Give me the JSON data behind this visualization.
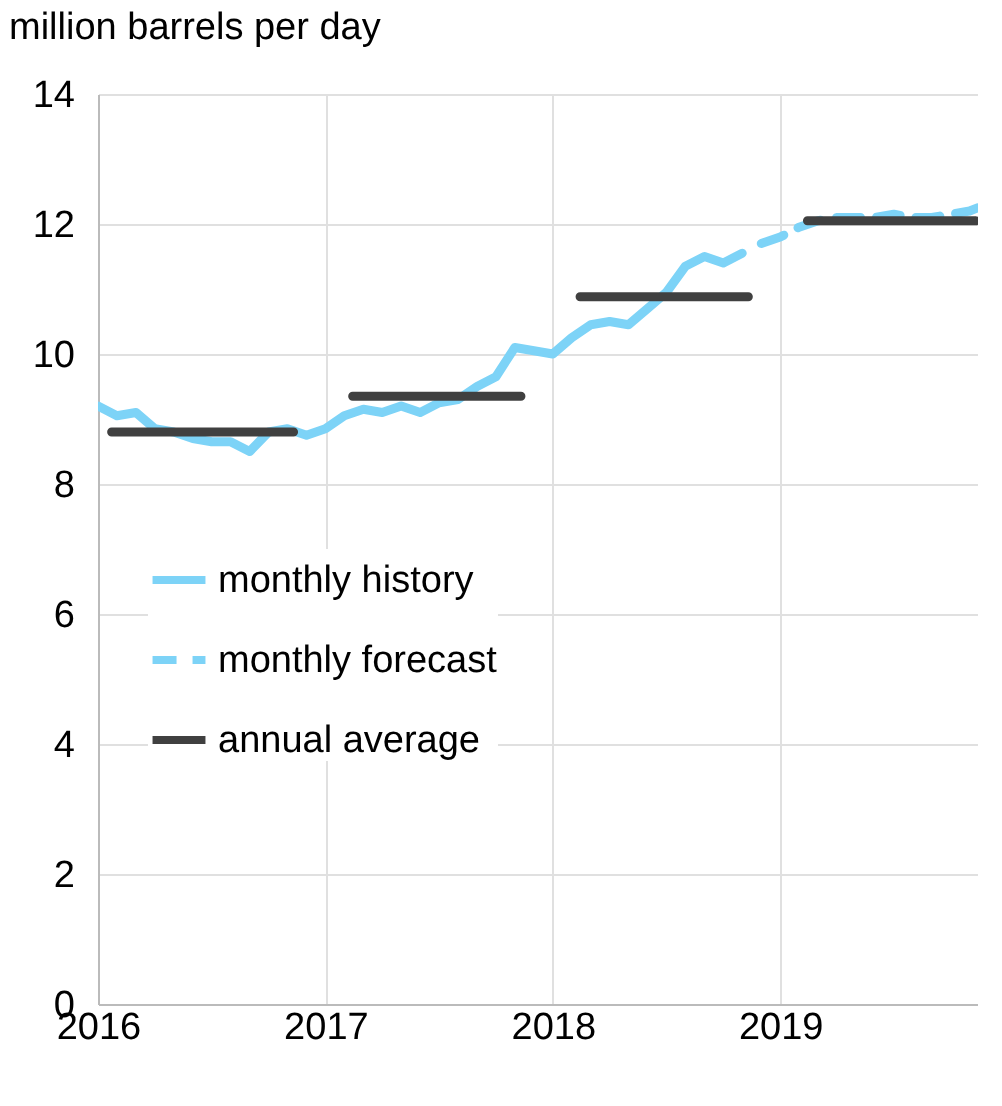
{
  "chart_data": {
    "type": "line",
    "ylabel": "million barrels per day",
    "xlim": [
      2016,
      2019.87
    ],
    "xticks": [
      2016,
      2017,
      2018,
      2019
    ],
    "ylim": [
      0,
      14
    ],
    "yticks": [
      0,
      2,
      4,
      6,
      8,
      10,
      12,
      14
    ],
    "grid": true,
    "legend": "left",
    "marker": "none",
    "series": [
      {
        "name": "monthly history",
        "color": "#7dd3f7",
        "line_style": "solid",
        "x": [
          2016,
          2016.083,
          2016.167,
          2016.25,
          2016.333,
          2016.417,
          2016.5,
          2016.583,
          2016.667,
          2016.75,
          2016.833,
          2016.917,
          2017,
          2017.083,
          2017.167,
          2017.25,
          2017.333,
          2017.417,
          2017.5,
          2017.583,
          2017.667,
          2017.75,
          2017.833,
          2017.917,
          2018,
          2018.083,
          2018.167,
          2018.25,
          2018.333,
          2018.417,
          2018.5,
          2018.583,
          2018.667,
          2018.75,
          2018.833
        ],
        "values": [
          9.2,
          9.05,
          9.1,
          8.85,
          8.8,
          8.7,
          8.65,
          8.65,
          8.5,
          8.8,
          8.85,
          8.75,
          8.85,
          9.05,
          9.15,
          9.1,
          9.2,
          9.1,
          9.25,
          9.3,
          9.5,
          9.65,
          10.1,
          10.05,
          10.0,
          10.25,
          10.45,
          10.5,
          10.45,
          10.7,
          10.95,
          11.35,
          11.5,
          11.4,
          11.55
        ]
      },
      {
        "name": "monthly forecast",
        "color": "#7dd3f7",
        "line_style": "dashed",
        "x": [
          2018.917,
          2019,
          2019.083,
          2019.167,
          2019.25,
          2019.333,
          2019.417,
          2019.5,
          2019.583,
          2019.667,
          2019.75,
          2019.833,
          2019.87
        ],
        "values": [
          11.7,
          11.8,
          11.95,
          12.05,
          12.1,
          12.1,
          12.1,
          12.15,
          12.1,
          12.1,
          12.15,
          12.2,
          12.25
        ]
      },
      {
        "name": "annual average",
        "color": "#404040",
        "line_style": "solid",
        "x": [
          2016.06,
          2016.86,
          2016.9,
          2017.12,
          2017.86,
          2017.9,
          2018.12,
          2018.86,
          2018.9,
          2019.12,
          2019.86
        ],
        "values": [
          8.8,
          8.8,
          null,
          9.35,
          9.35,
          null,
          10.88,
          10.88,
          null,
          12.05,
          12.05
        ]
      }
    ]
  }
}
